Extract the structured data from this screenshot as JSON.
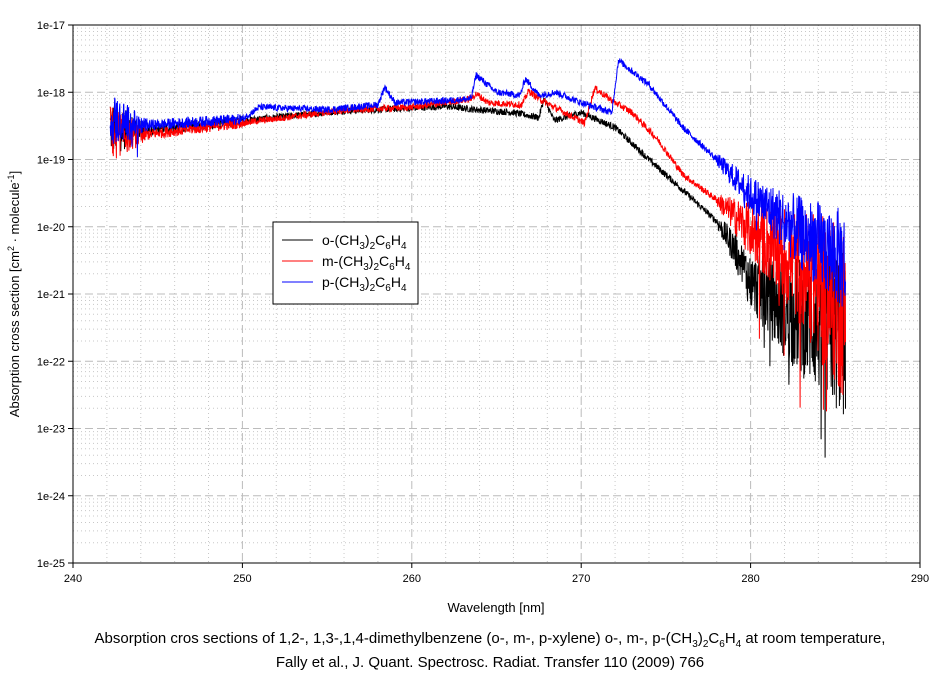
{
  "chart_data": {
    "type": "line",
    "title": "",
    "xlabel": "Wavelength [nm]",
    "ylabel": {
      "main": "Absorption cross section [cm",
      "sup1": "2",
      "mid": " · molecule",
      "sup2": "-1",
      "end": "]"
    },
    "xlim": [
      240,
      290
    ],
    "ylim": [
      1e-25,
      1e-17
    ],
    "yscale": "log",
    "grid": true,
    "x_ticks": [
      "240",
      "250",
      "260",
      "270",
      "280",
      "290"
    ],
    "y_ticks": [
      "1e-25",
      "1e-24",
      "1e-23",
      "1e-22",
      "1e-21",
      "1e-20",
      "1e-19",
      "1e-18",
      "1e-17"
    ],
    "legend_position": "center-left",
    "series": [
      {
        "name": "o-(CH3)2C6H4",
        "label": {
          "pre": "o-(CH",
          "s1": "3",
          "mid": ")",
          "s2": "2",
          "c": "C",
          "s3": "6",
          "h": "H",
          "s4": "4"
        },
        "color": "#000000",
        "points": [
          [
            242.2,
            3e-19
          ],
          [
            244,
            2.6e-19
          ],
          [
            250,
            3.8e-19
          ],
          [
            256,
            5.3e-19
          ],
          [
            260,
            5.8e-19
          ],
          [
            262,
            6.2e-19
          ],
          [
            263.5,
            5.6e-19
          ],
          [
            266,
            5e-19
          ],
          [
            267.5,
            4.2e-19
          ],
          [
            267.8,
            8e-19
          ],
          [
            268.4,
            3.8e-19
          ],
          [
            270,
            5e-19
          ],
          [
            272,
            3e-19
          ],
          [
            274,
            1e-19
          ],
          [
            276,
            3.5e-20
          ],
          [
            278,
            1.2e-20
          ],
          [
            279,
            5e-21
          ],
          [
            280,
            1.5e-21
          ],
          [
            282,
            6e-22
          ],
          [
            285.6,
            2.5e-22
          ]
        ]
      },
      {
        "name": "m-(CH3)2C6H4",
        "label": {
          "pre": "m-(CH",
          "s1": "3",
          "mid": ")",
          "s2": "2",
          "c": "C",
          "s3": "6",
          "h": "H",
          "s4": "4"
        },
        "color": "#ff0000",
        "points": [
          [
            242.2,
            2.5e-19
          ],
          [
            244,
            2.3e-19
          ],
          [
            250,
            3.5e-19
          ],
          [
            256,
            5.4e-19
          ],
          [
            260,
            6e-19
          ],
          [
            262,
            7e-19
          ],
          [
            263.5,
            8e-19
          ],
          [
            263.8,
            9.5e-19
          ],
          [
            264.5,
            7e-19
          ],
          [
            266.5,
            6.5e-19
          ],
          [
            266.9,
            1.05e-18
          ],
          [
            267.5,
            8e-19
          ],
          [
            269,
            5e-19
          ],
          [
            270.2,
            3.5e-19
          ],
          [
            270.8,
            1.15e-18
          ],
          [
            272,
            7e-19
          ],
          [
            273,
            5e-19
          ],
          [
            274.5,
            2e-19
          ],
          [
            276,
            6e-20
          ],
          [
            278,
            2.5e-20
          ],
          [
            280,
            9e-21
          ],
          [
            283,
            2.5e-21
          ],
          [
            285.6,
            5e-22
          ]
        ]
      },
      {
        "name": "p-(CH3)2C6H4",
        "label": {
          "pre": "p-(CH",
          "s1": "3",
          "mid": ")",
          "s2": "2",
          "c": "C",
          "s3": "6",
          "h": "H",
          "s4": "4"
        },
        "color": "#0000ff",
        "points": [
          [
            242.2,
            4e-19
          ],
          [
            244,
            3.2e-19
          ],
          [
            250,
            4e-19
          ],
          [
            251,
            6e-19
          ],
          [
            255,
            5.5e-19
          ],
          [
            258,
            6.5e-19
          ],
          [
            258.4,
            1.2e-18
          ],
          [
            259,
            7e-19
          ],
          [
            262,
            7.5e-19
          ],
          [
            263.5,
            8e-19
          ],
          [
            263.8,
            1.8e-18
          ],
          [
            265,
            1e-18
          ],
          [
            266.4,
            9e-19
          ],
          [
            266.7,
            1.6e-18
          ],
          [
            267.5,
            9e-19
          ],
          [
            268.5,
            1e-18
          ],
          [
            270,
            7e-19
          ],
          [
            271.8,
            5e-19
          ],
          [
            272.2,
            3e-18
          ],
          [
            274,
            1.3e-18
          ],
          [
            276,
            3e-19
          ],
          [
            278,
            1e-19
          ],
          [
            280,
            3e-20
          ],
          [
            283,
            8e-21
          ],
          [
            285.6,
            3e-21
          ]
        ]
      }
    ]
  },
  "caption": {
    "line1_pre": "Absorption cros sections of 1,2-, 1,3-,1,4-dimethylbenzene (o-, m-, p-xylene) o-, m-, p-(CH",
    "line1_s1": "3",
    "line1_mid": ")",
    "line1_s2": "2",
    "line1_c": "C",
    "line1_s3": "6",
    "line1_h": "H",
    "line1_s4": "4",
    "line1_post": " at room temperature,",
    "line2": "Fally et al., J. Quant. Spectrosc. Radiat. Transfer 110 (2009) 766"
  }
}
